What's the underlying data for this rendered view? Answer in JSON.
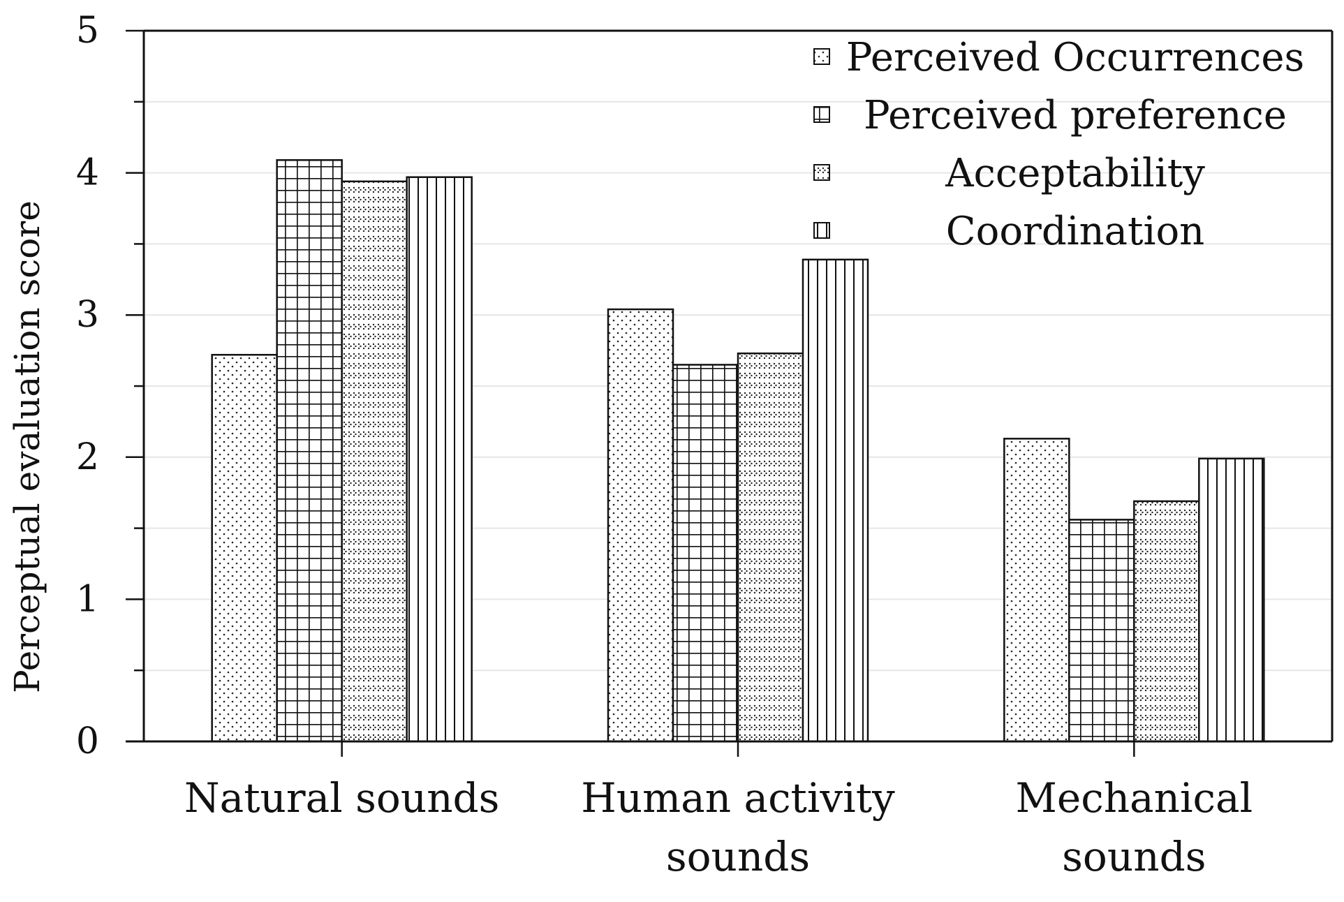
{
  "chart_data": {
    "type": "bar",
    "ylabel": "Perceptual evaluation score",
    "ylim": [
      0,
      5
    ],
    "yticks": [
      "0",
      "1",
      "2",
      "3",
      "4",
      "5"
    ],
    "grid": true,
    "legend_position": "top-right",
    "categories": [
      [
        "Natural sounds"
      ],
      [
        "Human activity",
        "sounds"
      ],
      [
        "Mechanical",
        "sounds"
      ]
    ],
    "series": [
      {
        "name": "Perceived Occurrences",
        "pattern": "dots",
        "values": [
          2.72,
          3.04,
          2.13
        ]
      },
      {
        "name": "Perceived preference",
        "pattern": "grid",
        "values": [
          4.09,
          2.65,
          1.56
        ]
      },
      {
        "name": "Acceptability",
        "pattern": "chevron-dots",
        "values": [
          3.94,
          2.73,
          1.69
        ]
      },
      {
        "name": "Coordination",
        "pattern": "vertical-lines",
        "values": [
          3.97,
          3.39,
          1.99
        ]
      }
    ],
    "colors": {
      "stroke": "#111111",
      "background": "#ffffff",
      "gridline": "#e6e6e6"
    }
  }
}
